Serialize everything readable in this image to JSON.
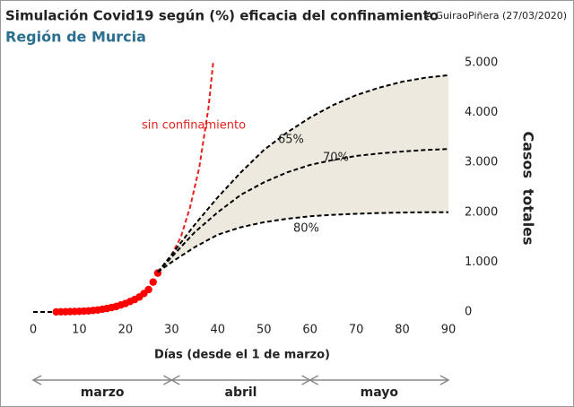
{
  "chart_data": {
    "type": "line",
    "title": "Simulación Covid19 según (%) eficacia del confinamiento",
    "subtitle": "Región de Murcia",
    "author": "A.GuiraoPiñera (27/03/2020)",
    "x_label": "Días (desde el 1 de marzo)",
    "y_label": "Casos totales",
    "xlim": [
      0,
      90
    ],
    "xticks": [
      0,
      10,
      20,
      30,
      40,
      50,
      60,
      70,
      80,
      90
    ],
    "ylim": [
      0,
      5000
    ],
    "yticks": [
      0,
      {
        "value": 1000,
        "label": "1.000"
      },
      {
        "value": 2000,
        "label": "2.000"
      },
      {
        "value": 3000,
        "label": "3.000"
      },
      {
        "value": 4000,
        "label": "4.000"
      },
      {
        "value": 5000,
        "label": "5.000"
      }
    ],
    "band_color": "#ede9df",
    "series": [
      {
        "style": "dashed",
        "color": "#000000",
        "x": [
          0,
          5
        ],
        "values": [
          0,
          0
        ]
      },
      {
        "style": "dots",
        "color": "#ff0000",
        "x": [
          5,
          6,
          7,
          8,
          9,
          10,
          11,
          12,
          13,
          14,
          15,
          16,
          17,
          18,
          19,
          20,
          21,
          22,
          23,
          24,
          25,
          26,
          27
        ],
        "values": [
          2,
          3,
          5,
          8,
          10,
          13,
          17,
          22,
          30,
          40,
          55,
          70,
          90,
          110,
          140,
          170,
          210,
          250,
          300,
          370,
          450,
          600,
          780
        ]
      },
      {
        "name": "sin confinamiento",
        "style": "dashed",
        "color": "#e8201c",
        "x": [
          27,
          28,
          30,
          32,
          34,
          36,
          38,
          39
        ],
        "values": [
          800,
          900,
          1150,
          1500,
          2100,
          2900,
          4100,
          5000
        ]
      },
      {
        "name": "65%",
        "style": "dashed",
        "color": "#000000",
        "x": [
          27,
          30,
          35,
          40,
          45,
          50,
          55,
          60,
          65,
          70,
          75,
          80,
          85,
          90
        ],
        "values": [
          800,
          1150,
          1750,
          2300,
          2800,
          3250,
          3600,
          3900,
          4150,
          4350,
          4500,
          4620,
          4700,
          4750
        ]
      },
      {
        "name": "70%",
        "style": "dashed",
        "color": "#000000",
        "x": [
          27,
          30,
          35,
          40,
          45,
          50,
          55,
          60,
          65,
          70,
          75,
          80,
          85,
          90
        ],
        "values": [
          800,
          1100,
          1600,
          2000,
          2350,
          2600,
          2800,
          2950,
          3050,
          3130,
          3180,
          3220,
          3250,
          3270
        ]
      },
      {
        "name": "80%",
        "style": "dashed",
        "color": "#000000",
        "x": [
          27,
          30,
          35,
          40,
          45,
          50,
          55,
          60,
          65,
          70,
          75,
          80,
          85,
          90
        ],
        "values": [
          800,
          1000,
          1300,
          1550,
          1700,
          1800,
          1870,
          1920,
          1950,
          1970,
          1985,
          1995,
          2000,
          2000
        ]
      }
    ],
    "periods": [
      {
        "label": "marzo",
        "from": 0,
        "to": 30
      },
      {
        "label": "abril",
        "from": 30,
        "to": 60
      },
      {
        "label": "mayo",
        "from": 60,
        "to": 90
      }
    ]
  }
}
